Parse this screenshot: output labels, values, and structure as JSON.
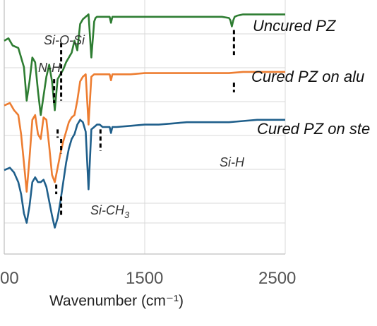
{
  "chart_data": {
    "type": "line",
    "xlabel": "Wavenumber (cm⁻¹)",
    "x_ticks": [
      "00",
      "1500",
      "2500"
    ],
    "xlim": [
      500,
      2500
    ],
    "grid": true,
    "series": [
      {
        "name": "Uncured PZ",
        "color": "#2e7d32",
        "x": [
          500,
          530,
          560,
          600,
          640,
          660,
          680,
          700,
          720,
          740,
          760,
          780,
          800,
          820,
          840,
          860,
          880,
          900,
          920,
          940,
          960,
          980,
          1000,
          1020,
          1040,
          1060,
          1080,
          1100,
          1120,
          1140,
          1150,
          1160,
          1170,
          1180,
          1200,
          1250,
          1260,
          1270,
          1300,
          1400,
          1500,
          1600,
          1700,
          1800,
          1900,
          2000,
          2050,
          2100,
          2110,
          2120,
          2130,
          2140,
          2160,
          2200,
          2300,
          2400,
          2500
        ],
        "y": [
          0.89,
          0.9,
          0.87,
          0.86,
          0.78,
          0.64,
          0.72,
          0.82,
          0.8,
          0.68,
          0.58,
          0.66,
          0.74,
          0.79,
          0.72,
          0.6,
          0.73,
          0.75,
          0.77,
          0.8,
          0.82,
          0.84,
          0.89,
          0.85,
          0.96,
          0.98,
          0.99,
          1.0,
          0.82,
          0.97,
          0.985,
          0.99,
          0.99,
          0.99,
          0.99,
          0.99,
          0.965,
          0.99,
          0.99,
          0.99,
          0.99,
          0.99,
          0.99,
          0.99,
          0.99,
          0.99,
          0.99,
          0.985,
          0.975,
          0.95,
          0.975,
          0.99,
          0.995,
          1.0,
          1.0,
          1.0,
          1.0
        ]
      },
      {
        "name": "Cured PZ on alu",
        "color": "#ed7d31",
        "x": [
          500,
          540,
          570,
          600,
          620,
          640,
          660,
          680,
          700,
          720,
          740,
          760,
          780,
          800,
          820,
          840,
          860,
          880,
          900,
          920,
          940,
          960,
          980,
          1000,
          1020,
          1040,
          1060,
          1080,
          1100,
          1120,
          1140,
          1160,
          1180,
          1200,
          1250,
          1260,
          1270,
          1300,
          1400,
          1500,
          1600,
          1700,
          1800,
          1900,
          2000,
          2100,
          2200,
          2300,
          2400,
          2500
        ],
        "y": [
          0.62,
          0.63,
          0.6,
          0.58,
          0.5,
          0.38,
          0.26,
          0.4,
          0.56,
          0.58,
          0.5,
          0.48,
          0.57,
          0.56,
          0.45,
          0.33,
          0.3,
          0.36,
          0.42,
          0.47,
          0.51,
          0.55,
          0.57,
          0.58,
          0.64,
          0.72,
          0.74,
          0.75,
          0.54,
          0.74,
          0.75,
          0.75,
          0.75,
          0.75,
          0.75,
          0.725,
          0.75,
          0.75,
          0.75,
          0.755,
          0.755,
          0.755,
          0.755,
          0.755,
          0.755,
          0.755,
          0.76,
          0.76,
          0.76,
          0.76
        ]
      },
      {
        "name": "Cured PZ on ste",
        "color": "#1f5f8b",
        "x": [
          500,
          540,
          570,
          600,
          620,
          640,
          660,
          680,
          700,
          720,
          740,
          760,
          780,
          800,
          820,
          840,
          860,
          880,
          900,
          920,
          940,
          960,
          980,
          1000,
          1020,
          1040,
          1060,
          1080,
          1100,
          1120,
          1140,
          1160,
          1180,
          1200,
          1250,
          1260,
          1270,
          1300,
          1400,
          1500,
          1600,
          1700,
          1800,
          1900,
          2000,
          2100,
          2200,
          2300,
          2400,
          2500
        ],
        "y": [
          0.35,
          0.36,
          0.34,
          0.3,
          0.25,
          0.17,
          0.13,
          0.2,
          0.3,
          0.32,
          0.3,
          0.3,
          0.31,
          0.28,
          0.22,
          0.16,
          0.11,
          0.15,
          0.22,
          0.3,
          0.38,
          0.44,
          0.48,
          0.5,
          0.54,
          0.56,
          0.55,
          0.51,
          0.27,
          0.52,
          0.53,
          0.54,
          0.54,
          0.53,
          0.53,
          0.505,
          0.53,
          0.53,
          0.535,
          0.54,
          0.54,
          0.545,
          0.55,
          0.55,
          0.55,
          0.55,
          0.555,
          0.56,
          0.56,
          0.56
        ]
      }
    ],
    "annotations": [
      {
        "label": "Si-O-Si",
        "x": 905,
        "y_top": 0.88,
        "y_bottom": 0.64
      },
      {
        "label": "N-H",
        "x": 855,
        "y_top": 0.73,
        "y_bottom": 0.63
      },
      {
        "label": "Si-H",
        "x": 2135,
        "y_top": 0.935,
        "y_bottom": 0.83
      },
      {
        "label": "Si-CH3",
        "x": 1185,
        "y_top": 0.52,
        "y_bottom": 0.43
      }
    ],
    "extra_dashes": [
      {
        "x": 880,
        "y_top": 0.52,
        "y_bottom": 0.485
      },
      {
        "x": 905,
        "y_top": 0.48,
        "y_bottom": 0.42
      },
      {
        "x": 2135,
        "y_top": 0.715,
        "y_bottom": 0.675
      },
      {
        "x": 870,
        "y_top": 0.29,
        "y_bottom": 0.25
      },
      {
        "x": 905,
        "y_top": 0.24,
        "y_bottom": 0.16
      }
    ]
  }
}
